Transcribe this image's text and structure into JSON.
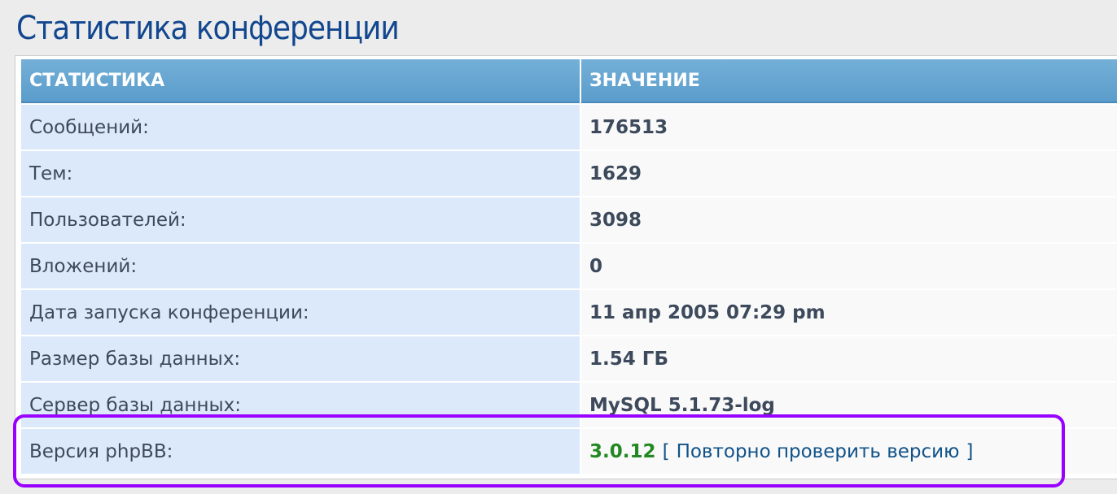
{
  "title": "Статистика конференции",
  "headers": {
    "stat": "СТАТИСТИКА",
    "value": "ЗНАЧЕНИЕ"
  },
  "rows": [
    {
      "label": "Сообщений:",
      "value": "176513"
    },
    {
      "label": "Тем:",
      "value": "1629"
    },
    {
      "label": "Пользователей:",
      "value": "3098"
    },
    {
      "label": "Вложений:",
      "value": "0"
    },
    {
      "label": "Дата запуска конференции:",
      "value": "11 апр 2005 07:29 pm"
    },
    {
      "label": "Размер базы данных:",
      "value": "1.54 ГБ"
    },
    {
      "label": "Сервер базы данных:",
      "value": "MySQL 5.1.73-log"
    }
  ],
  "version": {
    "label": "Версия phpBB:",
    "value": "3.0.12",
    "open": "[",
    "link": "Повторно проверить версию",
    "close": "]"
  },
  "colors": {
    "highlight": "#9900ff",
    "version_ok": "#228822"
  }
}
